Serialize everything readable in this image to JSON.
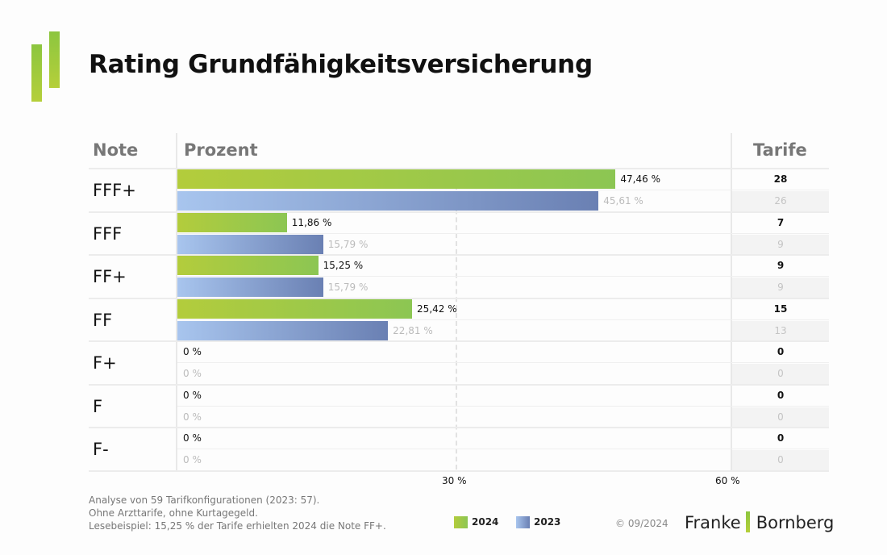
{
  "title": "Rating Grundfähigkeitsversicherung",
  "headers": {
    "note": "Note",
    "prozent": "Prozent",
    "tarife": "Tarife"
  },
  "colors": {
    "current": "#8cc653",
    "previous": "#6a80b3"
  },
  "chart_data": {
    "type": "bar",
    "title": "Rating Grundfähigkeitsversicherung",
    "orientation": "horizontal",
    "categories": [
      "FFF+",
      "FFF",
      "FF+",
      "FF",
      "F+",
      "F",
      "F-"
    ],
    "series": [
      {
        "name": "2024",
        "values": [
          47.46,
          11.86,
          15.25,
          25.42,
          0,
          0,
          0
        ],
        "labels": [
          "47,46 %",
          "11,86 %",
          "15,25 %",
          "25,42 %",
          "0 %",
          "0 %",
          "0 %"
        ],
        "tarife": [
          "28",
          "7",
          "9",
          "15",
          "0",
          "0",
          "0"
        ]
      },
      {
        "name": "2023",
        "values": [
          45.61,
          15.79,
          15.79,
          22.81,
          0,
          0,
          0
        ],
        "labels": [
          "45,61 %",
          "15,79 %",
          "15,79 %",
          "22,81 %",
          "0 %",
          "0 %",
          "0 %"
        ],
        "tarife": [
          "26",
          "9",
          "9",
          "13",
          "0",
          "0",
          "0"
        ]
      }
    ],
    "xlim": [
      0,
      60
    ],
    "xticks": [
      "30 %",
      "60 %"
    ],
    "xlabel": "Prozent",
    "ylabel": "Note",
    "legend": [
      "2024",
      "2023"
    ],
    "legend_position": "bottom"
  },
  "footnotes": [
    "Analyse von 59 Tarifkonfigurationen (2023: 57).",
    "Ohne Arzttarife, ohne Kurtagegeld.",
    "Lesebeispiel: 15,25 % der Tarife erhielten 2024 die Note FF+."
  ],
  "copyright": "© 09/2024",
  "brand": {
    "left": "Franke",
    "right": "Bornberg"
  }
}
